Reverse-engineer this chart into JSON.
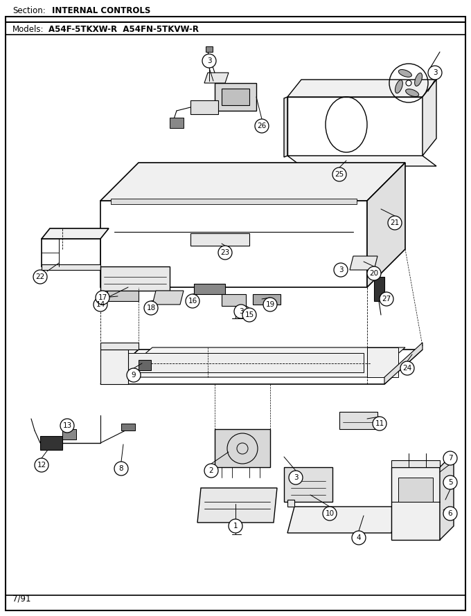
{
  "section_label": "Section:",
  "section_title": "INTERNAL CONTROLS",
  "models_label": "Models:",
  "models_text": "A54F-5TKXW-R  A54FN-5TKVW-R",
  "date_label": "7/91",
  "bg_color": "#ffffff",
  "line_color": "#000000",
  "text_color": "#000000",
  "fig_w": 6.8,
  "fig_h": 8.9,
  "dpi": 100
}
